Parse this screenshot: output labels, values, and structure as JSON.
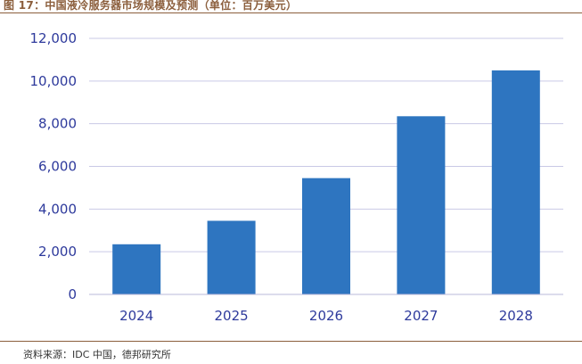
{
  "figure_title": "图 17：中国液冷服务器市场规模及预测（单位：百万美元）",
  "source_note": "资料来源：IDC 中国，德邦研究所",
  "colors": {
    "bar": "#2E75C0",
    "grid": "#C9C9E6",
    "axis_text": "#2E3A9C",
    "rule": "#8B5E3C"
  },
  "chart_data": {
    "type": "bar",
    "categories": [
      "2024",
      "2025",
      "2026",
      "2027",
      "2028"
    ],
    "values": [
      2350,
      3450,
      5450,
      8350,
      10500
    ],
    "ylim": [
      0,
      12000
    ],
    "yticks": [
      0,
      2000,
      4000,
      6000,
      8000,
      10000,
      12000
    ],
    "ytick_labels": [
      "0",
      "2,000",
      "4,000",
      "6,000",
      "8,000",
      "10,000",
      "12,000"
    ],
    "grid": true,
    "legend": "none"
  }
}
